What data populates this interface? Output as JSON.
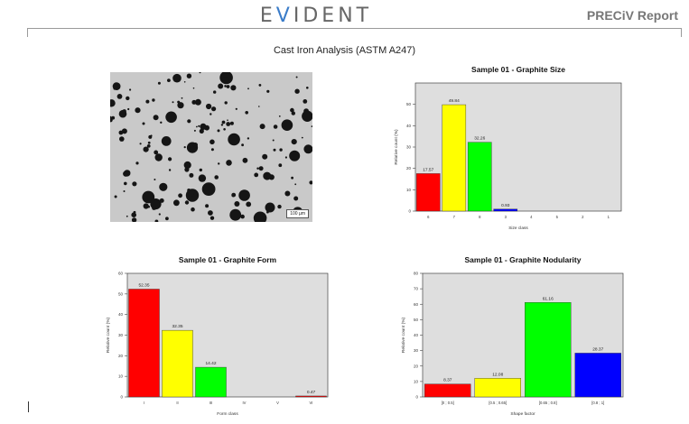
{
  "header": {
    "logo_pre": "E",
    "logo_accent": "V",
    "logo_post": "IDENT",
    "report_title": "PRECiV Report"
  },
  "document": {
    "title": "Cast Iron Analysis (ASTM A247)"
  },
  "micrograph": {
    "scale_label": "100 µm"
  },
  "chart_data": [
    {
      "type": "bar",
      "title": "Sample 01 - Graphite Size",
      "xlabel": "Size class",
      "ylabel": "Relative count (%)",
      "categories": [
        "6",
        "7",
        "8",
        "3",
        "4",
        "5",
        "2",
        "1"
      ],
      "values": [
        17.57,
        49.84,
        32.26,
        0.93,
        0,
        0,
        0,
        0
      ],
      "labels": [
        "17.57",
        "49.84",
        "32.26",
        "0.93",
        "",
        "",
        "",
        ""
      ],
      "colors": [
        "#ff0000",
        "#ffff00",
        "#00ff00",
        "#0000ff",
        "#cccccc",
        "#cccccc",
        "#cccccc",
        "#cccccc"
      ],
      "ylim": [
        0,
        60
      ],
      "yticks": [
        0,
        10,
        20,
        30,
        40,
        50
      ],
      "grid": false
    },
    {
      "type": "bar",
      "title": "Sample 01 - Graphite Form",
      "xlabel": "Form class",
      "ylabel": "Relative count (%)",
      "categories": [
        "I",
        "II",
        "III",
        "IV",
        "V",
        "VI"
      ],
      "values": [
        52.35,
        32.35,
        14.42,
        0,
        0,
        0.47
      ],
      "labels": [
        "52.35",
        "32.35",
        "14.42",
        "",
        "",
        "0.47"
      ],
      "colors": [
        "#ff0000",
        "#ffff00",
        "#00ff00",
        "#cccccc",
        "#cccccc",
        "#ff0000"
      ],
      "ylim": [
        0,
        60
      ],
      "yticks": [
        0,
        10,
        20,
        30,
        40,
        50,
        60
      ],
      "grid": false
    },
    {
      "type": "bar",
      "title": "Sample 01 - Graphite Nodularity",
      "xlabel": "Shape factor",
      "ylabel": "Relative count (%)",
      "categories": [
        "[0 ; 0.5]",
        "[0.5 ; 0.65]",
        "[0.65 ; 0.8]",
        "[0.8 ; 1]"
      ],
      "values": [
        8.37,
        12.08,
        61.16,
        28.37
      ],
      "labels": [
        "8.37",
        "12.08",
        "61.16",
        "28.37"
      ],
      "colors": [
        "#ff0000",
        "#ffff00",
        "#00ff00",
        "#0000ff"
      ],
      "ylim": [
        0,
        80
      ],
      "yticks": [
        0,
        10,
        20,
        30,
        40,
        50,
        60,
        70,
        80
      ],
      "grid": false
    }
  ]
}
